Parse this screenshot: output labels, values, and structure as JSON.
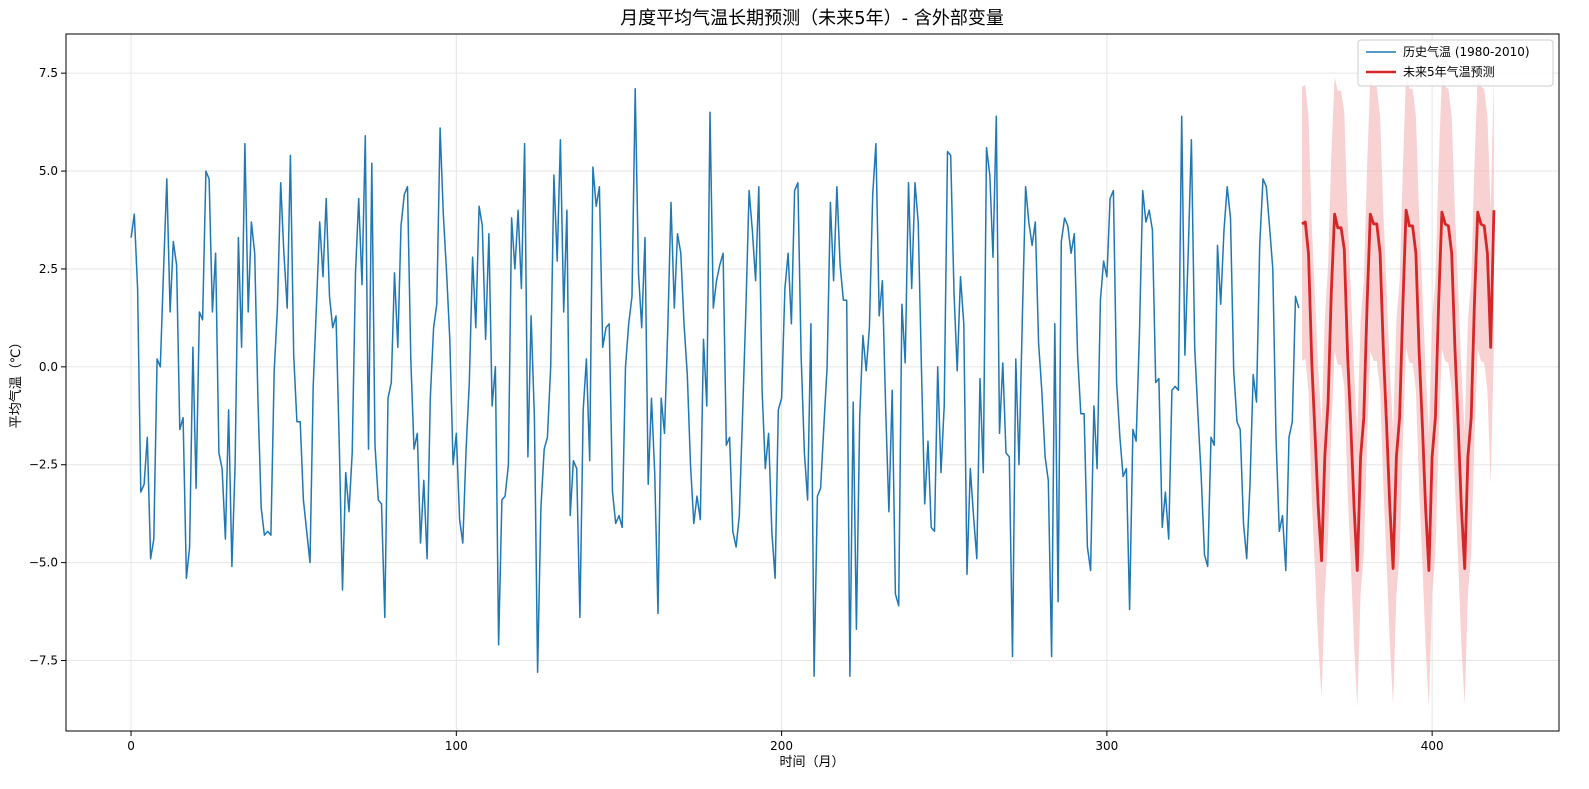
{
  "chart_data": {
    "type": "line",
    "title": "月度平均气温长期预测（未来5年）- 含外部变量",
    "xlabel": "时间（月）",
    "ylabel": "平均气温（℃）",
    "xlim": [
      -20,
      439
    ],
    "ylim": [
      -9.3,
      8.5
    ],
    "grid": true,
    "legend_position": "top-right",
    "x_ticks": [
      0,
      100,
      200,
      300,
      400
    ],
    "x_tick_labels": [
      "0",
      "100",
      "200",
      "300",
      "400"
    ],
    "y_ticks": [
      -7.5,
      -5.0,
      -2.5,
      0.0,
      2.5,
      5.0,
      7.5
    ],
    "y_tick_labels": [
      "−7.5",
      "−5.0",
      "−2.5",
      "0.0",
      "2.5",
      "5.0",
      "7.5"
    ],
    "colors": {
      "history": "#1f77b4",
      "forecast": "#d62728",
      "ci_fill": "#f4b9bb"
    },
    "series": [
      {
        "name": "历史气温 (1980-2010)",
        "x_start": 0,
        "values": [
          3.3,
          3.9,
          2.0,
          -3.2,
          -3.0,
          -1.8,
          -4.9,
          -4.4,
          0.2,
          0.0,
          2.5,
          4.8,
          1.4,
          3.2,
          2.6,
          -1.6,
          -1.3,
          -5.4,
          -4.6,
          0.5,
          -3.1,
          1.4,
          1.2,
          5.0,
          4.8,
          1.4,
          2.9,
          -2.2,
          -2.6,
          -4.4,
          -1.1,
          -5.1,
          -2.5,
          3.3,
          0.5,
          5.7,
          1.4,
          3.7,
          2.9,
          -0.8,
          -3.6,
          -4.3,
          -4.2,
          -4.3,
          -0.1,
          1.5,
          4.7,
          2.9,
          1.5,
          5.4,
          0.3,
          -1.4,
          -1.4,
          -3.4,
          -4.2,
          -5.0,
          -0.5,
          1.6,
          3.7,
          2.3,
          4.3,
          1.8,
          1.0,
          1.3,
          -1.9,
          -5.7,
          -2.7,
          -3.7,
          -2.2,
          2.4,
          4.3,
          2.1,
          5.9,
          -2.1,
          5.2,
          -2.0,
          -3.4,
          -3.5,
          -6.4,
          -0.8,
          -0.4,
          2.4,
          0.5,
          3.6,
          4.4,
          4.6,
          0.2,
          -2.1,
          -1.7,
          -4.5,
          -2.9,
          -4.9,
          -0.8,
          1.0,
          1.6,
          6.1,
          3.9,
          2.4,
          0.7,
          -2.5,
          -1.7,
          -3.9,
          -4.5,
          -2.1,
          -0.4,
          2.8,
          1.0,
          4.1,
          3.6,
          0.7,
          3.4,
          -1.0,
          0.0,
          -7.1,
          -3.4,
          -3.3,
          -2.5,
          3.8,
          2.5,
          4.0,
          2.0,
          5.7,
          -2.3,
          1.3,
          -1.3,
          -7.8,
          -3.6,
          -2.1,
          -1.8,
          0.0,
          4.9,
          2.7,
          5.8,
          1.4,
          4.0,
          -3.8,
          -2.4,
          -2.6,
          -6.4,
          -1.1,
          0.2,
          -2.4,
          5.1,
          4.1,
          4.6,
          0.5,
          1.0,
          1.1,
          -3.2,
          -4.0,
          -3.8,
          -4.1,
          0.0,
          1.1,
          1.8,
          7.1,
          2.4,
          1.0,
          3.3,
          -3.0,
          -0.8,
          -2.7,
          -6.3,
          -0.8,
          -1.7,
          1.0,
          4.2,
          1.5,
          3.4,
          2.9,
          1.1,
          -0.2,
          -2.5,
          -4.0,
          -3.3,
          -3.9,
          0.7,
          -1.0,
          6.5,
          1.5,
          2.2,
          2.6,
          2.9,
          -2.0,
          -1.8,
          -4.2,
          -4.6,
          -3.8,
          -1.2,
          1.4,
          4.5,
          3.5,
          2.2,
          4.6,
          -0.6,
          -2.6,
          -1.7,
          -4.2,
          -5.4,
          -1.1,
          -0.8,
          2.0,
          2.9,
          1.1,
          4.5,
          4.7,
          0.3,
          -2.2,
          -3.4,
          1.1,
          -7.9,
          -3.3,
          -3.1,
          -1.5,
          0.0,
          4.2,
          2.2,
          4.6,
          2.6,
          1.7,
          1.7,
          -7.9,
          -0.9,
          -6.7,
          -1.3,
          0.8,
          -0.1,
          1.0,
          4.4,
          5.7,
          1.3,
          2.2,
          -1.1,
          -3.7,
          -0.6,
          -5.8,
          -6.1,
          1.6,
          0.1,
          4.7,
          2.0,
          4.7,
          3.7,
          -0.1,
          -3.5,
          -1.9,
          -4.1,
          -4.2,
          0.0,
          -2.7,
          -1.0,
          5.5,
          5.4,
          1.9,
          -0.1,
          2.3,
          1.1,
          -5.3,
          -2.6,
          -3.8,
          -4.9,
          -0.3,
          -2.7,
          5.6,
          4.9,
          2.8,
          6.4,
          -1.7,
          0.1,
          -2.2,
          -2.3,
          -7.4,
          0.2,
          -2.5,
          1.2,
          4.6,
          3.7,
          3.1,
          3.7,
          0.6,
          -0.6,
          -2.3,
          -2.9,
          -7.4,
          1.1,
          -6.0,
          3.2,
          3.8,
          3.6,
          2.9,
          3.4,
          0.3,
          -1.2,
          -1.2,
          -4.6,
          -5.2,
          -1.0,
          -2.6,
          1.7,
          2.7,
          2.3,
          4.3,
          4.5,
          -0.4,
          -1.8,
          -2.8,
          -2.6,
          -6.2,
          -1.6,
          -1.9,
          0.8,
          4.5,
          3.7,
          4.0,
          3.5,
          -0.4,
          -0.3,
          -4.1,
          -3.2,
          -4.4,
          -0.6,
          -0.5,
          -0.6,
          6.4,
          0.3,
          2.9,
          5.8,
          0.5,
          -1.2,
          -2.8,
          -4.8,
          -5.1,
          -1.8,
          -2.0,
          3.1,
          1.6,
          3.5,
          4.6,
          3.8,
          -0.1,
          -1.4,
          -1.6,
          -4.0,
          -4.9,
          -3.0,
          -0.2,
          -0.9,
          3.1,
          4.8,
          4.6,
          3.6,
          2.5,
          -1.8,
          -4.2,
          -3.8,
          -5.2,
          -1.8,
          -1.4,
          1.8,
          1.5
        ]
      },
      {
        "name": "未来5年气温预测",
        "x_start": 360,
        "values": [
          3.65,
          3.7,
          2.9,
          0.1,
          -1.7,
          -3.6,
          -4.95,
          -2.3,
          -0.9,
          1.9,
          3.9,
          3.55,
          3.55,
          3.0,
          0.3,
          -1.5,
          -3.6,
          -5.2,
          -2.3,
          -1.3,
          1.6,
          3.9,
          3.65,
          3.65,
          2.9,
          0.4,
          -1.5,
          -3.6,
          -5.15,
          -2.3,
          -1.3,
          1.6,
          4.0,
          3.6,
          3.6,
          2.9,
          0.4,
          -1.5,
          -3.6,
          -5.2,
          -2.3,
          -1.3,
          1.6,
          3.95,
          3.65,
          3.6,
          2.9,
          0.5,
          -1.5,
          -3.6,
          -5.15,
          -2.3,
          -1.3,
          1.6,
          3.95,
          3.65,
          3.6,
          2.9,
          0.5,
          4.0
        ],
        "ci_width": 3.5
      }
    ]
  }
}
